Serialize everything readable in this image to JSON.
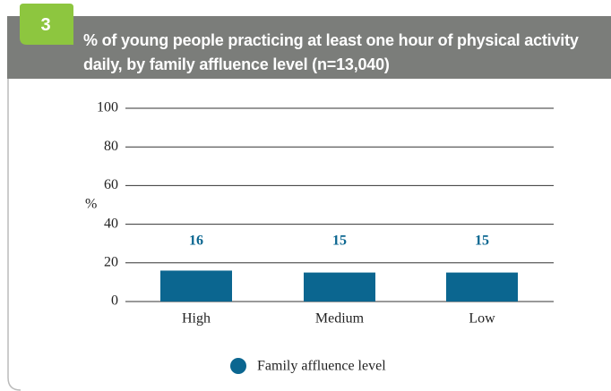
{
  "badge": "3",
  "chart_data": {
    "type": "bar",
    "title": "% of young people practicing at least one hour of physical activity daily, by family affluence level (n=13,040)",
    "ylabel": "%",
    "categories": [
      "High",
      "Medium",
      "Low"
    ],
    "series": [
      {
        "name": "Family affluence level",
        "color": "#0b6690",
        "values": [
          16,
          15,
          15
        ]
      }
    ],
    "ylim": [
      0,
      100
    ],
    "yticks": [
      0,
      20,
      40,
      60,
      80,
      100
    ],
    "grid": true
  }
}
